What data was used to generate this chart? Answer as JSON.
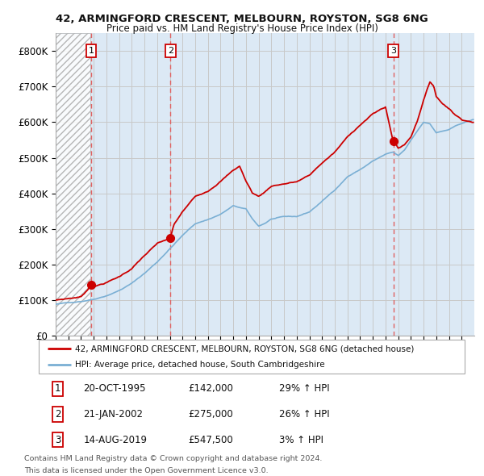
{
  "title1": "42, ARMINGFORD CRESCENT, MELBOURN, ROYSTON, SG8 6NG",
  "title2": "Price paid vs. HM Land Registry's House Price Index (HPI)",
  "background_color": "#ffffff",
  "plot_bg_color": "#dce9f5",
  "hatch_bg_color": "#f0f0f0",
  "grid_color": "#c8c8c8",
  "red_line_color": "#cc0000",
  "blue_line_color": "#7aafd4",
  "sale_marker_color": "#cc0000",
  "vline_color": "#e06060",
  "ylim": [
    0,
    850000
  ],
  "yticks": [
    0,
    100000,
    200000,
    300000,
    400000,
    500000,
    600000,
    700000,
    800000
  ],
  "ytick_labels": [
    "£0",
    "£100K",
    "£200K",
    "£300K",
    "£400K",
    "£500K",
    "£600K",
    "£700K",
    "£800K"
  ],
  "xlim_start": 1993.0,
  "xlim_end": 2026.0,
  "hatch_end": 1995.75,
  "sales": [
    {
      "year": 1995.8,
      "price": 142000,
      "label": "1"
    },
    {
      "year": 2002.05,
      "price": 275000,
      "label": "2"
    },
    {
      "year": 2019.62,
      "price": 547500,
      "label": "3"
    }
  ],
  "legend_label_red": "42, ARMINGFORD CRESCENT, MELBOURN, ROYSTON, SG8 6NG (detached house)",
  "legend_label_blue": "HPI: Average price, detached house, South Cambridgeshire",
  "table_rows": [
    {
      "num": "1",
      "date": "20-OCT-1995",
      "price": "£142,000",
      "change": "29% ↑ HPI"
    },
    {
      "num": "2",
      "date": "21-JAN-2002",
      "price": "£275,000",
      "change": "26% ↑ HPI"
    },
    {
      "num": "3",
      "date": "14-AUG-2019",
      "price": "£547,500",
      "change": "3% ↑ HPI"
    }
  ],
  "footnote1": "Contains HM Land Registry data © Crown copyright and database right 2024.",
  "footnote2": "This data is licensed under the Open Government Licence v3.0."
}
